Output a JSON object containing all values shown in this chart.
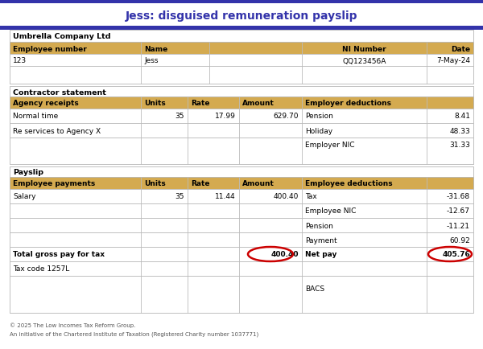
{
  "title": "Jess: disguised remuneration payslip",
  "title_color": "#3333aa",
  "bg_color": "#ffffff",
  "header_bg": "#d4aa50",
  "border_color": "#bbbbbb",
  "top_bar_color": "#3333aa",
  "company_name": "Umbrella Company Ltd",
  "employee_number": "123",
  "employee_name": "Jess",
  "ni_number": "QQ123456A",
  "date": "7-May-24",
  "contractor_header": "Contractor statement",
  "agency_receipts_header": "Agency receipts",
  "agency_units_header": "Units",
  "agency_rate_header": "Rate",
  "agency_amount_header": "Amount",
  "employer_deductions_header": "Employer deductions",
  "normal_time_label": "Normal time",
  "normal_time_units": "35",
  "normal_time_rate": "17.99",
  "normal_time_amount": "629.70",
  "re_services_label": "Re services to Agency X",
  "pension_employer_label": "Pension",
  "pension_employer_value": "8.41",
  "holiday_label": "Holiday",
  "holiday_value": "48.33",
  "employer_nic_label": "Employer NIC",
  "employer_nic_value": "31.33",
  "payslip_header": "Payslip",
  "employee_payments_header": "Employee payments",
  "emp_units_header": "Units",
  "emp_rate_header": "Rate",
  "emp_amount_header": "Amount",
  "employee_deductions_header": "Employee deductions",
  "salary_label": "Salary",
  "salary_units": "35",
  "salary_rate": "11.44",
  "salary_amount": "400.40",
  "tax_label": "Tax",
  "tax_value": "-31.68",
  "employee_nic_label": "Employee NIC",
  "employee_nic_value": "-12.67",
  "pension_employee_label": "Pension",
  "pension_employee_value": "-11.21",
  "payment_label": "Payment",
  "payment_value": "60.92",
  "total_gross_label": "Total gross pay for tax",
  "total_gross_value": "400.40",
  "net_pay_label": "Net pay",
  "net_pay_value": "405.76",
  "tax_code_label": "Tax code 1257L",
  "bacs_label": "BACS",
  "circle_color": "#cc0000",
  "footer_line1": "© 2025 The Low Incomes Tax Reform Group.",
  "footer_line2": "An initiative of the Chartered Institute of Taxation (Registered Charity number 1037771)"
}
